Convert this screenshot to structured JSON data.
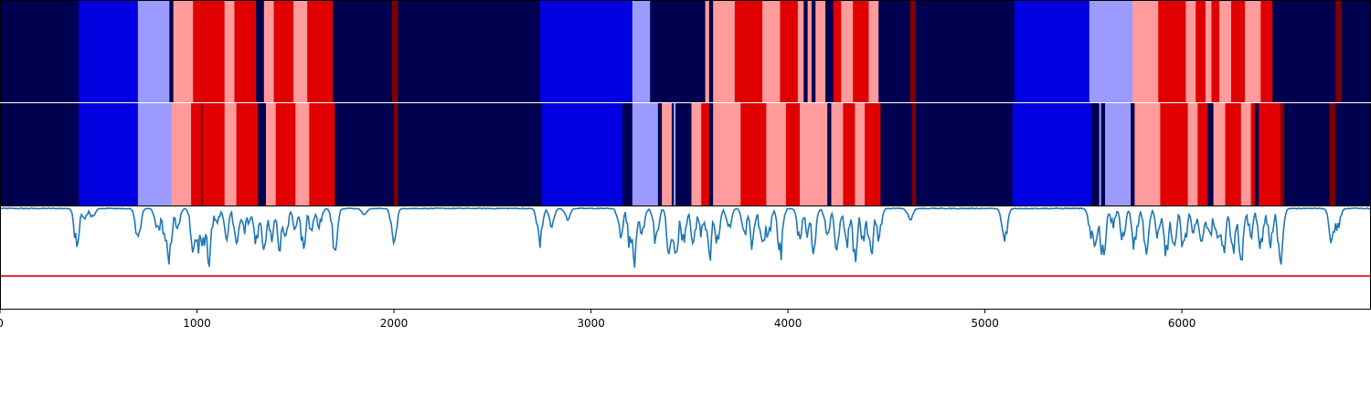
{
  "chart_data": [
    {
      "type": "heatmap",
      "name": "segmentation-row-1",
      "xlim": [
        0,
        6960
      ],
      "palette": {
        "0": "#000050",
        "1": "#0000e0",
        "2": "#9b9bff",
        "3": "#ff9b9b",
        "4": "#e00000",
        "5": "#800000"
      },
      "segments": [
        [
          0,
          400,
          0
        ],
        [
          400,
          700,
          1
        ],
        [
          700,
          860,
          2
        ],
        [
          860,
          880,
          0
        ],
        [
          880,
          980,
          3
        ],
        [
          980,
          1140,
          4
        ],
        [
          1140,
          1190,
          3
        ],
        [
          1190,
          1300,
          4
        ],
        [
          1300,
          1340,
          0
        ],
        [
          1340,
          1390,
          3
        ],
        [
          1390,
          1490,
          4
        ],
        [
          1490,
          1560,
          3
        ],
        [
          1560,
          1690,
          4
        ],
        [
          1690,
          1990,
          0
        ],
        [
          1990,
          2020,
          5
        ],
        [
          2020,
          2740,
          0
        ],
        [
          2740,
          3210,
          1
        ],
        [
          3210,
          3300,
          2
        ],
        [
          3300,
          3580,
          0
        ],
        [
          3580,
          3600,
          3
        ],
        [
          3600,
          3620,
          0
        ],
        [
          3620,
          3730,
          3
        ],
        [
          3730,
          3870,
          4
        ],
        [
          3870,
          3960,
          3
        ],
        [
          3960,
          4050,
          4
        ],
        [
          4050,
          4080,
          3
        ],
        [
          4080,
          4100,
          0
        ],
        [
          4100,
          4120,
          3
        ],
        [
          4120,
          4140,
          0
        ],
        [
          4140,
          4190,
          3
        ],
        [
          4190,
          4230,
          0
        ],
        [
          4230,
          4270,
          4
        ],
        [
          4270,
          4330,
          3
        ],
        [
          4330,
          4410,
          4
        ],
        [
          4410,
          4460,
          3
        ],
        [
          4460,
          4620,
          0
        ],
        [
          4620,
          4650,
          5
        ],
        [
          4650,
          5150,
          0
        ],
        [
          5150,
          5530,
          1
        ],
        [
          5530,
          5750,
          2
        ],
        [
          5750,
          5880,
          3
        ],
        [
          5880,
          6020,
          4
        ],
        [
          6020,
          6070,
          3
        ],
        [
          6070,
          6120,
          4
        ],
        [
          6120,
          6150,
          3
        ],
        [
          6150,
          6190,
          4
        ],
        [
          6190,
          6250,
          3
        ],
        [
          6250,
          6320,
          4
        ],
        [
          6320,
          6400,
          3
        ],
        [
          6400,
          6460,
          4
        ],
        [
          6460,
          6780,
          0
        ],
        [
          6780,
          6810,
          5
        ],
        [
          6810,
          6960,
          0
        ]
      ]
    },
    {
      "type": "heatmap",
      "name": "segmentation-row-2",
      "xlim": [
        0,
        6960
      ],
      "palette": {
        "0": "#000050",
        "1": "#0000e0",
        "2": "#9b9bff",
        "3": "#ff9b9b",
        "4": "#e00000",
        "5": "#800000"
      },
      "segments": [
        [
          0,
          400,
          0
        ],
        [
          400,
          700,
          1
        ],
        [
          700,
          870,
          2
        ],
        [
          870,
          970,
          3
        ],
        [
          970,
          1020,
          4
        ],
        [
          1020,
          1030,
          5
        ],
        [
          1030,
          1140,
          4
        ],
        [
          1140,
          1200,
          3
        ],
        [
          1200,
          1310,
          4
        ],
        [
          1310,
          1350,
          0
        ],
        [
          1350,
          1400,
          3
        ],
        [
          1400,
          1500,
          4
        ],
        [
          1500,
          1570,
          3
        ],
        [
          1570,
          1700,
          4
        ],
        [
          1700,
          2000,
          0
        ],
        [
          2000,
          2020,
          5
        ],
        [
          2020,
          2750,
          0
        ],
        [
          2750,
          3160,
          1
        ],
        [
          3160,
          3210,
          0
        ],
        [
          3210,
          3340,
          2
        ],
        [
          3340,
          3360,
          0
        ],
        [
          3360,
          3410,
          3
        ],
        [
          3410,
          3420,
          0
        ],
        [
          3420,
          3430,
          2
        ],
        [
          3430,
          3510,
          0
        ],
        [
          3510,
          3560,
          3
        ],
        [
          3560,
          3600,
          4
        ],
        [
          3600,
          3620,
          0
        ],
        [
          3620,
          3760,
          3
        ],
        [
          3760,
          3890,
          4
        ],
        [
          3890,
          3990,
          3
        ],
        [
          3990,
          4060,
          4
        ],
        [
          4060,
          4200,
          3
        ],
        [
          4200,
          4220,
          0
        ],
        [
          4220,
          4280,
          3
        ],
        [
          4280,
          4340,
          4
        ],
        [
          4340,
          4390,
          3
        ],
        [
          4390,
          4470,
          4
        ],
        [
          4470,
          4630,
          0
        ],
        [
          4630,
          4650,
          5
        ],
        [
          4650,
          5140,
          0
        ],
        [
          5140,
          5540,
          1
        ],
        [
          5540,
          5580,
          0
        ],
        [
          5580,
          5590,
          2
        ],
        [
          5590,
          5610,
          0
        ],
        [
          5610,
          5740,
          2
        ],
        [
          5740,
          5760,
          0
        ],
        [
          5760,
          5890,
          3
        ],
        [
          5890,
          6030,
          4
        ],
        [
          6030,
          6080,
          3
        ],
        [
          6080,
          6130,
          4
        ],
        [
          6130,
          6160,
          0
        ],
        [
          6160,
          6220,
          3
        ],
        [
          6220,
          6300,
          4
        ],
        [
          6300,
          6350,
          3
        ],
        [
          6350,
          6370,
          4
        ],
        [
          6370,
          6390,
          0
        ],
        [
          6390,
          6500,
          4
        ],
        [
          6500,
          6520,
          5
        ],
        [
          6520,
          6750,
          0
        ],
        [
          6750,
          6780,
          5
        ],
        [
          6780,
          6960,
          0
        ]
      ]
    },
    {
      "type": "line",
      "name": "signal",
      "xlim": [
        0,
        6960
      ],
      "ylim": [
        -0.5,
        0
      ],
      "x_ticks": [
        0,
        1000,
        2000,
        3000,
        4000,
        5000,
        6000
      ],
      "tick_labels": [
        "0",
        "1000",
        "2000",
        "3000",
        "4000",
        "5000",
        "6000"
      ],
      "threshold": -0.34,
      "threshold_color": "#e00000",
      "line_color": "#1f77b4",
      "baseline": -0.01,
      "dips": [
        [
          390,
          -0.24
        ],
        [
          430,
          -0.06
        ],
        [
          470,
          -0.05
        ],
        [
          700,
          -0.2
        ],
        [
          800,
          -0.15
        ],
        [
          840,
          -0.2
        ],
        [
          860,
          -0.3
        ],
        [
          900,
          -0.12
        ],
        [
          980,
          -0.22
        ],
        [
          1000,
          -0.27
        ],
        [
          1030,
          -0.24
        ],
        [
          1060,
          -0.32
        ],
        [
          1100,
          -0.1
        ],
        [
          1150,
          -0.16
        ],
        [
          1200,
          -0.2
        ],
        [
          1240,
          -0.14
        ],
        [
          1260,
          -0.08
        ],
        [
          1300,
          -0.22
        ],
        [
          1340,
          -0.29
        ],
        [
          1380,
          -0.18
        ],
        [
          1420,
          -0.22
        ],
        [
          1450,
          -0.16
        ],
        [
          1500,
          -0.12
        ],
        [
          1540,
          -0.22
        ],
        [
          1580,
          -0.13
        ],
        [
          1620,
          -0.1
        ],
        [
          1700,
          -0.25
        ],
        [
          1850,
          -0.04
        ],
        [
          2000,
          -0.2
        ],
        [
          2740,
          -0.2
        ],
        [
          2800,
          -0.1
        ],
        [
          2880,
          -0.07
        ],
        [
          3150,
          -0.15
        ],
        [
          3200,
          -0.24
        ],
        [
          3220,
          -0.3
        ],
        [
          3260,
          -0.15
        ],
        [
          3330,
          -0.2
        ],
        [
          3400,
          -0.33
        ],
        [
          3430,
          -0.3
        ],
        [
          3470,
          -0.2
        ],
        [
          3520,
          -0.22
        ],
        [
          3560,
          -0.15
        ],
        [
          3600,
          -0.3
        ],
        [
          3640,
          -0.2
        ],
        [
          3700,
          -0.12
        ],
        [
          3780,
          -0.16
        ],
        [
          3820,
          -0.22
        ],
        [
          3870,
          -0.25
        ],
        [
          3900,
          -0.18
        ],
        [
          3960,
          -0.3
        ],
        [
          4060,
          -0.18
        ],
        [
          4100,
          -0.15
        ],
        [
          4130,
          -0.23
        ],
        [
          4200,
          -0.15
        ],
        [
          4250,
          -0.25
        ],
        [
          4300,
          -0.2
        ],
        [
          4340,
          -0.29
        ],
        [
          4380,
          -0.2
        ],
        [
          4420,
          -0.28
        ],
        [
          4460,
          -0.18
        ],
        [
          4620,
          -0.07
        ],
        [
          5100,
          -0.2
        ],
        [
          5540,
          -0.17
        ],
        [
          5560,
          -0.24
        ],
        [
          5600,
          -0.31
        ],
        [
          5650,
          -0.1
        ],
        [
          5700,
          -0.18
        ],
        [
          5760,
          -0.24
        ],
        [
          5820,
          -0.25
        ],
        [
          5880,
          -0.18
        ],
        [
          5920,
          -0.25
        ],
        [
          5960,
          -0.24
        ],
        [
          6010,
          -0.26
        ],
        [
          6060,
          -0.15
        ],
        [
          6100,
          -0.26
        ],
        [
          6140,
          -0.18
        ],
        [
          6180,
          -0.22
        ],
        [
          6210,
          -0.26
        ],
        [
          6260,
          -0.25
        ],
        [
          6300,
          -0.3
        ],
        [
          6350,
          -0.16
        ],
        [
          6400,
          -0.26
        ],
        [
          6450,
          -0.22
        ],
        [
          6500,
          -0.3
        ],
        [
          6760,
          -0.22
        ],
        [
          6790,
          -0.12
        ]
      ]
    }
  ]
}
